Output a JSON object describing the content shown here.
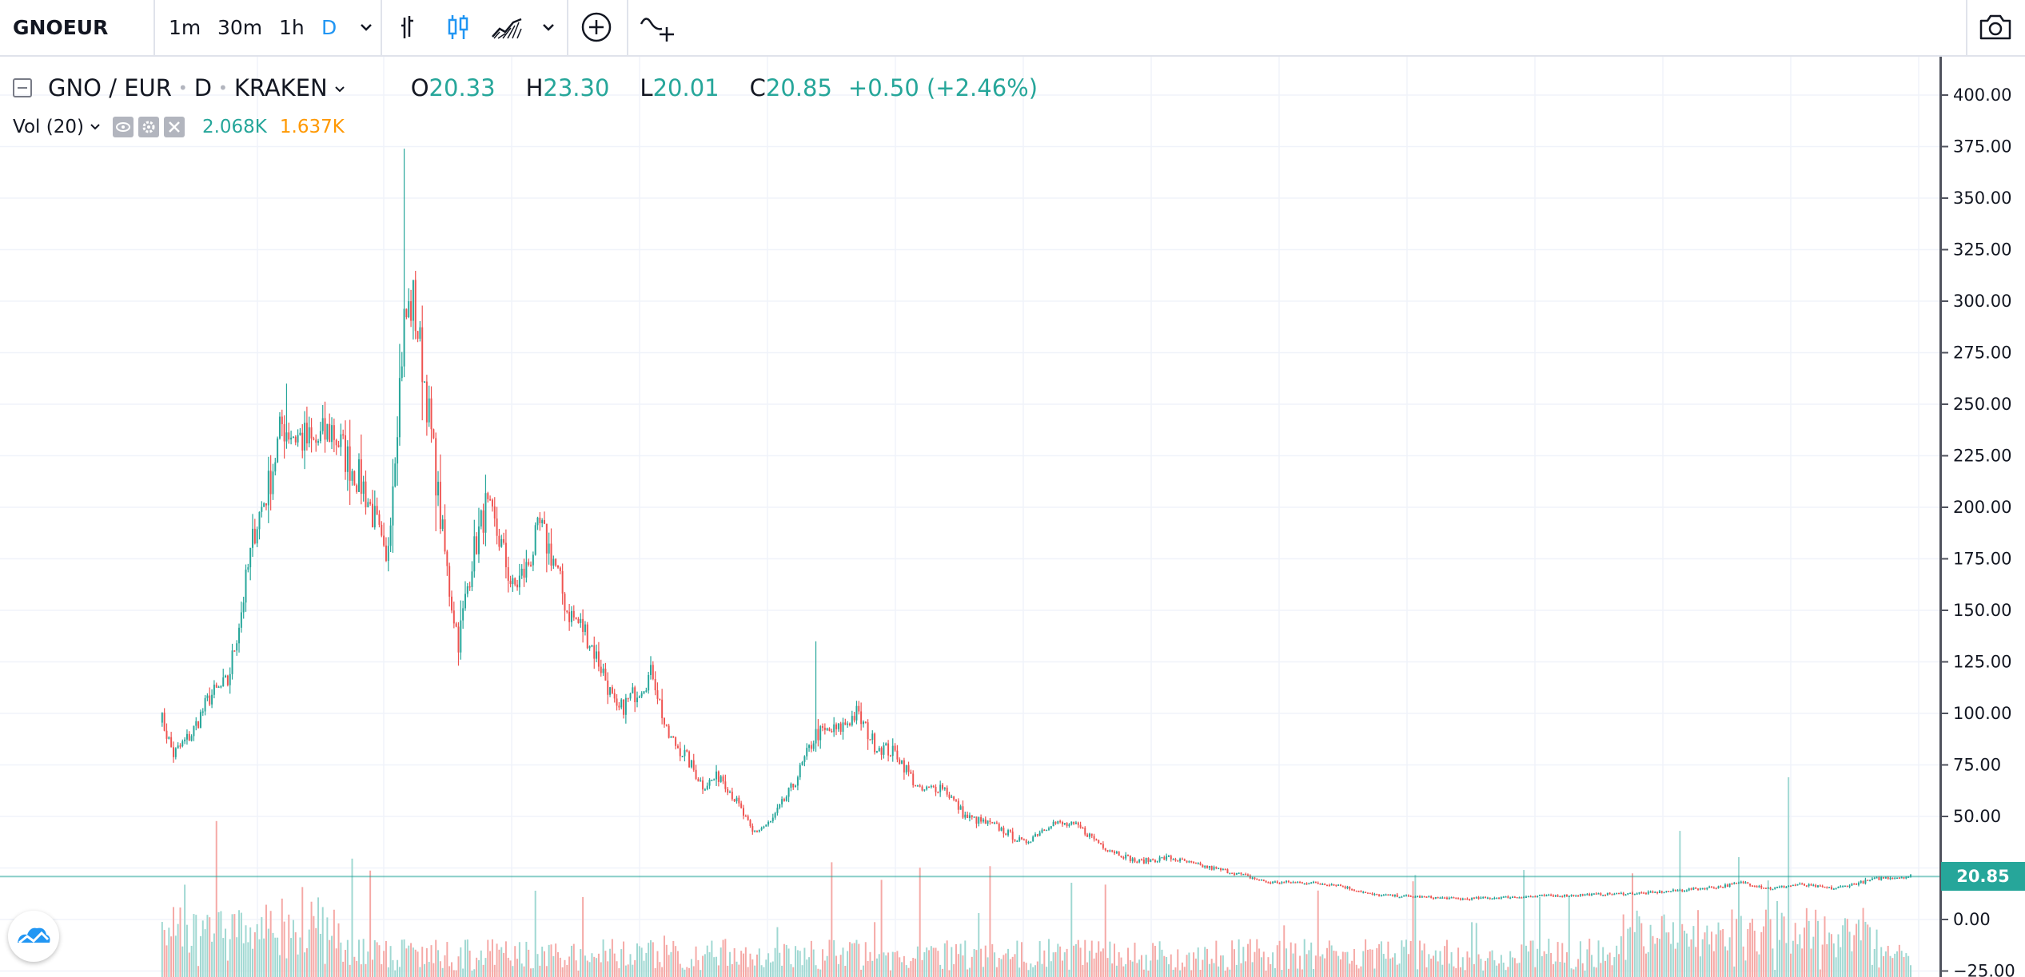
{
  "toolbar": {
    "symbol": "GNOEUR",
    "intervals": [
      "1m",
      "30m",
      "1h",
      "D"
    ],
    "active_interval": "D",
    "icons": [
      "bars-style-icon",
      "candles-style-icon",
      "area-style-icon",
      "chart-style-dropdown-icon",
      "compare-add-icon",
      "indicators-icon",
      "snapshot-camera-icon"
    ]
  },
  "legend": {
    "symbol": "GNO / EUR",
    "interval": "D",
    "exchange": "KRAKEN",
    "ohlc": {
      "open_label": "O",
      "open": "20.33",
      "high_label": "H",
      "high": "23.30",
      "low_label": "L",
      "low": "20.01",
      "close_label": "C",
      "close": "20.85"
    },
    "change": "+0.50 (+2.46%)",
    "volume": {
      "label": "Vol (20)",
      "value": "2.068K",
      "ma_value": "1.637K"
    }
  },
  "price_axis": {
    "ticks": [
      "400.00",
      "375.00",
      "350.00",
      "325.00",
      "300.00",
      "275.00",
      "250.00",
      "225.00",
      "200.00",
      "175.00",
      "150.00",
      "125.00",
      "100.00",
      "75.00",
      "50.00",
      "0.00",
      "−25.00"
    ],
    "last_price": "20.85"
  },
  "colors": {
    "up": "#26a69a",
    "down": "#ef5350",
    "up_volume": "#9fd8d2",
    "down_volume": "#f5a9a6",
    "accent": "#2196f3",
    "ma": "#ff9800"
  },
  "chart_data": {
    "type": "candlestick",
    "series_name": "GNO / EUR",
    "y_axis_range": [
      -25,
      400
    ],
    "close_path": [
      {
        "i": 0,
        "c": 100
      },
      {
        "i": 6,
        "c": 80
      },
      {
        "i": 14,
        "c": 90
      },
      {
        "i": 22,
        "c": 108
      },
      {
        "i": 30,
        "c": 115
      },
      {
        "i": 36,
        "c": 150
      },
      {
        "i": 42,
        "c": 190
      },
      {
        "i": 48,
        "c": 210
      },
      {
        "i": 54,
        "c": 240
      },
      {
        "i": 60,
        "c": 235
      },
      {
        "i": 68,
        "c": 230
      },
      {
        "i": 76,
        "c": 238
      },
      {
        "i": 82,
        "c": 225
      },
      {
        "i": 90,
        "c": 210
      },
      {
        "i": 96,
        "c": 190
      },
      {
        "i": 100,
        "c": 170
      },
      {
        "i": 104,
        "c": 230
      },
      {
        "i": 108,
        "c": 290
      },
      {
        "i": 112,
        "c": 300
      },
      {
        "i": 116,
        "c": 270
      },
      {
        "i": 120,
        "c": 235
      },
      {
        "i": 124,
        "c": 195
      },
      {
        "i": 128,
        "c": 160
      },
      {
        "i": 132,
        "c": 135
      },
      {
        "i": 138,
        "c": 175
      },
      {
        "i": 144,
        "c": 200
      },
      {
        "i": 150,
        "c": 185
      },
      {
        "i": 156,
        "c": 160
      },
      {
        "i": 162,
        "c": 170
      },
      {
        "i": 168,
        "c": 190
      },
      {
        "i": 174,
        "c": 175
      },
      {
        "i": 180,
        "c": 150
      },
      {
        "i": 188,
        "c": 140
      },
      {
        "i": 196,
        "c": 120
      },
      {
        "i": 202,
        "c": 100
      },
      {
        "i": 210,
        "c": 110
      },
      {
        "i": 218,
        "c": 120
      },
      {
        "i": 224,
        "c": 90
      },
      {
        "i": 232,
        "c": 80
      },
      {
        "i": 240,
        "c": 65
      },
      {
        "i": 248,
        "c": 70
      },
      {
        "i": 256,
        "c": 55
      },
      {
        "i": 262,
        "c": 42
      },
      {
        "i": 270,
        "c": 47
      },
      {
        "i": 280,
        "c": 65
      },
      {
        "i": 290,
        "c": 90
      },
      {
        "i": 300,
        "c": 92
      },
      {
        "i": 308,
        "c": 100
      },
      {
        "i": 316,
        "c": 85
      },
      {
        "i": 326,
        "c": 80
      },
      {
        "i": 336,
        "c": 62
      },
      {
        "i": 346,
        "c": 65
      },
      {
        "i": 356,
        "c": 50
      },
      {
        "i": 370,
        "c": 45
      },
      {
        "i": 382,
        "c": 37
      },
      {
        "i": 394,
        "c": 47
      },
      {
        "i": 406,
        "c": 45
      },
      {
        "i": 418,
        "c": 35
      },
      {
        "i": 432,
        "c": 28
      },
      {
        "i": 446,
        "c": 30
      },
      {
        "i": 460,
        "c": 26
      },
      {
        "i": 474,
        "c": 23
      },
      {
        "i": 490,
        "c": 18
      },
      {
        "i": 506,
        "c": 18
      },
      {
        "i": 520,
        "c": 17
      },
      {
        "i": 536,
        "c": 12
      },
      {
        "i": 556,
        "c": 11
      },
      {
        "i": 576,
        "c": 10
      },
      {
        "i": 600,
        "c": 11
      },
      {
        "i": 630,
        "c": 12
      },
      {
        "i": 660,
        "c": 13
      },
      {
        "i": 690,
        "c": 16
      },
      {
        "i": 700,
        "c": 18
      },
      {
        "i": 712,
        "c": 15
      },
      {
        "i": 724,
        "c": 17
      },
      {
        "i": 740,
        "c": 15
      },
      {
        "i": 760,
        "c": 20
      },
      {
        "i": 774,
        "c": 21
      }
    ],
    "spikes": [
      {
        "i": 108,
        "high": 374
      },
      {
        "i": 56,
        "high": 260
      },
      {
        "i": 290,
        "high": 135
      },
      {
        "i": 112,
        "high": 308
      }
    ]
  }
}
